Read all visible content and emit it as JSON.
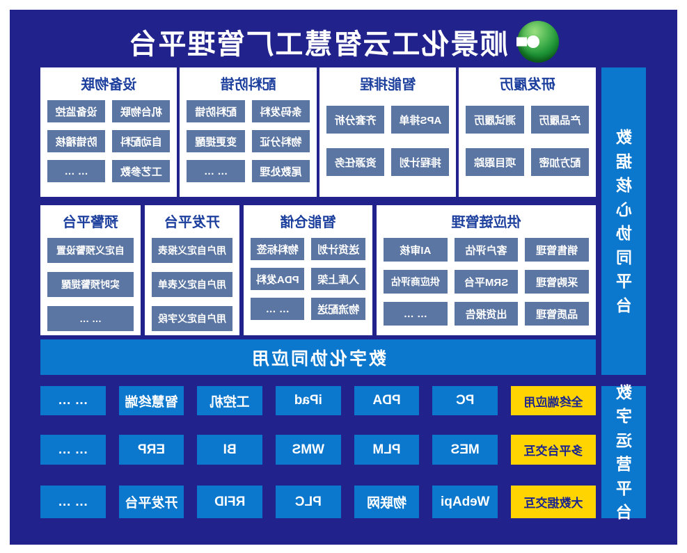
{
  "header": {
    "title": "顺景化工云智慧工厂管理平台",
    "logo": "green-sphere-power-logo"
  },
  "note": "screenshot is horizontally mirrored; template flips rendered layout with scaleX(-1)",
  "colors": {
    "panel_navy": "#21228c",
    "bright_blue": "#0b77cd",
    "slate_chip": "#5b76a3",
    "highlight_yellow": "#ffd400",
    "card_title_blue": "#1c3f9e",
    "card_bg": "#ffffff"
  },
  "side_rails": {
    "top": "数据核心协同平台",
    "bottom": "数字运营平台"
  },
  "banner": "数字化协同应用",
  "cards_row1": [
    {
      "title": "研发履历",
      "items": [
        "产品履历",
        "测试履历",
        "配方加密",
        "项目跟踪"
      ]
    },
    {
      "title": "智能排程",
      "items": [
        "APS排单",
        "齐套分析",
        "排程计划",
        "资源任务"
      ]
    },
    {
      "title": "配料防错",
      "items": [
        "条码发料",
        "配料防错",
        "物料分证",
        "变更提醒",
        "尾数处理",
        "… …"
      ]
    },
    {
      "title": "设备物联",
      "items": [
        "机台物联",
        "设备监控",
        "自动配料",
        "防错稽核",
        "工艺参数",
        "… …"
      ]
    }
  ],
  "cards_row2": [
    {
      "title": "供应链管理",
      "items": [
        "销售管理",
        "客户评估",
        "AI审核",
        "采购管理",
        "SRM平台",
        "供应商评估",
        "品质管理",
        "出货报告",
        "… …"
      ]
    },
    {
      "title": "智能仓储",
      "items": [
        "送货计划",
        "物料标签",
        "入库上架",
        "PDA发料",
        "物流配送",
        "… …"
      ]
    },
    {
      "title": "开发平台",
      "items": [
        "用户自定义报表",
        "用户自定义表单",
        "用户自定义字段"
      ]
    },
    {
      "title": "预警平台",
      "items": [
        "自定义预警设置",
        "实时预警提醒",
        "… …"
      ]
    }
  ],
  "device_rows": {
    "row1": [
      "全终端应用",
      "PC",
      "PDA",
      "iPad",
      "工控机",
      "智慧终端",
      "… …"
    ],
    "row2": [
      "多平台交互",
      "MES",
      "PLM",
      "WMS",
      "BI",
      "ERP",
      "… …"
    ],
    "row3": [
      "大数据交互",
      "WebApi",
      "物联网",
      "PLC",
      "RFID",
      "开发平台",
      "… …"
    ]
  }
}
